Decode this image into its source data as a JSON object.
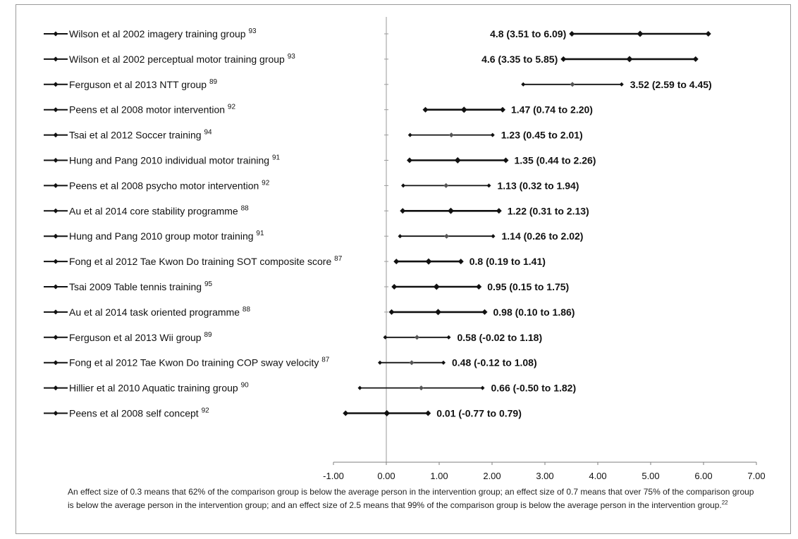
{
  "chart_data": {
    "type": "forest",
    "xlim": [
      -1,
      7
    ],
    "xticks": [
      "-1.00",
      "0.00",
      "1.00",
      "2.00",
      "3.00",
      "4.00",
      "5.00",
      "6.00",
      "7.00"
    ],
    "rows": [
      {
        "label": "Wilson et al 2002  imagery training group",
        "ref": "93",
        "estimate": 4.8,
        "lower": 3.51,
        "upper": 6.09,
        "value_label": "4.8 (3.51 to 6.09)",
        "bold": true
      },
      {
        "label": "Wilson et al 2002 perceptual motor training group",
        "ref": "93",
        "estimate": 4.6,
        "lower": 3.35,
        "upper": 5.85,
        "value_label": "4.6 (3.35 to 5.85)",
        "bold": true
      },
      {
        "label": "Ferguson et al  2013  NTT group",
        "ref": "89",
        "estimate": 3.52,
        "lower": 2.59,
        "upper": 4.45,
        "value_label": "3.52 (2.59 to 4.45)",
        "bold": false
      },
      {
        "label": "Peens et al 2008 motor intervention",
        "ref": "92",
        "estimate": 1.47,
        "lower": 0.74,
        "upper": 2.2,
        "value_label": "1.47 (0.74 to 2.20)",
        "bold": true
      },
      {
        "label": "Tsai et al 2012 Soccer training",
        "ref": "94",
        "estimate": 1.23,
        "lower": 0.45,
        "upper": 2.01,
        "value_label": "1.23 (0.45 to 2.01)",
        "bold": false
      },
      {
        "label": "Hung and Pang 2010 individual motor training",
        "ref": "91",
        "estimate": 1.35,
        "lower": 0.44,
        "upper": 2.26,
        "value_label": "1.35 (0.44 to 2.26)",
        "bold": true
      },
      {
        "label": "Peens et al 2008 psycho motor intervention",
        "ref": "92",
        "estimate": 1.13,
        "lower": 0.32,
        "upper": 1.94,
        "value_label": "1.13 (0.32 to 1.94)",
        "bold": false
      },
      {
        "label": "Au et al  2014 core stability programme",
        "ref": "88",
        "estimate": 1.22,
        "lower": 0.31,
        "upper": 2.13,
        "value_label": "1.22 (0.31 to 2.13)",
        "bold": true
      },
      {
        "label": "Hung and Pang 2010 group motor training",
        "ref": "91",
        "estimate": 1.14,
        "lower": 0.26,
        "upper": 2.02,
        "value_label": "1.14 (0.26 to 2.02)",
        "bold": false
      },
      {
        "label": "Fong et al 2012 Tae Kwon Do training SOT composite score",
        "ref": "87",
        "estimate": 0.8,
        "lower": 0.19,
        "upper": 1.41,
        "value_label": "0.8 (0.19 to 1.41)",
        "bold": true
      },
      {
        "label": "Tsai 2009 Table tennis training",
        "ref": "95",
        "estimate": 0.95,
        "lower": 0.15,
        "upper": 1.75,
        "value_label": "0.95 (0.15 to 1.75)",
        "bold": true
      },
      {
        "label": "Au et al  2014 task oriented programme",
        "ref": "88",
        "estimate": 0.98,
        "lower": 0.1,
        "upper": 1.86,
        "value_label": "0.98 (0.10 to 1.86)",
        "bold": true
      },
      {
        "label": "Ferguson et al  2013  Wii group",
        "ref": "89",
        "estimate": 0.58,
        "lower": -0.02,
        "upper": 1.18,
        "value_label": "0.58 (-0.02 to 1.18)",
        "bold": false
      },
      {
        "label": "Fong et al 2012 Tae Kwon Do training COP sway velocity",
        "ref": "87",
        "estimate": 0.48,
        "lower": -0.12,
        "upper": 1.08,
        "value_label": "0.48 (-0.12 to 1.08)",
        "bold": false
      },
      {
        "label": "Hillier et al 2010 Aquatic training group",
        "ref": "90",
        "estimate": 0.66,
        "lower": -0.5,
        "upper": 1.82,
        "value_label": "0.66 (-0.50 to 1.82)",
        "bold": false
      },
      {
        "label": "Peens et al 2008 self concept",
        "ref": "92",
        "estimate": 0.01,
        "lower": -0.77,
        "upper": 0.79,
        "value_label": "0.01 (-0.77 to 0.79)",
        "bold": true
      }
    ]
  },
  "footnote": {
    "text": "An effect size of 0.3 means that 62% of the comparison group is below the average person in the intervention group; an effect size of 0.7 means that over 75% of the comparison group is below the average person in the intervention group; and an effect size of 2.5 means that 99% of the comparison group is below the average person in the intervention group.",
    "ref": "22"
  }
}
